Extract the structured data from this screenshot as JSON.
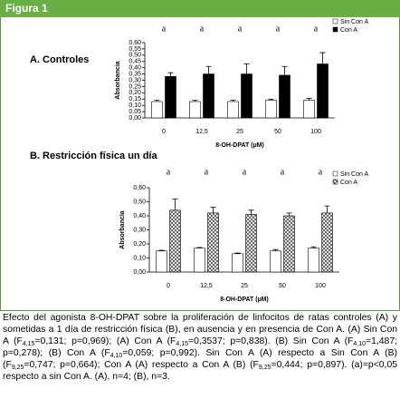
{
  "figure_label": "Figura 1",
  "chart_data": [
    {
      "type": "bar",
      "title": "A. Controles",
      "xlabel": "8-OH-DPAT (µM)",
      "ylabel": "Absorbancia",
      "categories": [
        "0",
        "12,5",
        "25",
        "50",
        "100"
      ],
      "annotations": [
        "a",
        "a",
        "a",
        "a",
        "a"
      ],
      "series": [
        {
          "name": "Sin Con A",
          "color": "#ffffff",
          "values": [
            0.13,
            0.13,
            0.13,
            0.14,
            0.14
          ],
          "errors": [
            0.01,
            0.01,
            0.01,
            0.01,
            0.015
          ]
        },
        {
          "name": "Con A",
          "color": "#000000",
          "values": [
            0.33,
            0.35,
            0.35,
            0.34,
            0.43
          ],
          "errors": [
            0.03,
            0.06,
            0.08,
            0.07,
            0.09
          ]
        }
      ],
      "ylim": [
        0,
        0.6
      ],
      "yticks": [
        {
          "value": 0,
          "label": "0,00"
        },
        {
          "value": 0.05,
          "label": "0,05"
        },
        {
          "value": 0.1,
          "label": "0,10"
        },
        {
          "value": 0.15,
          "label": "0,15"
        },
        {
          "value": 0.2,
          "label": "0,20"
        },
        {
          "value": 0.25,
          "label": "0,25"
        },
        {
          "value": 0.3,
          "label": "0,30"
        },
        {
          "value": 0.35,
          "label": "0,35"
        },
        {
          "value": 0.4,
          "label": "0,40"
        },
        {
          "value": 0.45,
          "label": "0,45"
        },
        {
          "value": 0.5,
          "label": "0,50"
        },
        {
          "value": 0.55,
          "label": "0,55"
        },
        {
          "value": 0.6,
          "label": "0,60"
        }
      ],
      "legend": "top-right"
    },
    {
      "type": "bar",
      "title": "B. Restricción física un día",
      "xlabel": "8-OH-DPAT (µM)",
      "ylabel": "Absorbancia",
      "categories": [
        "0",
        "12,5",
        "25",
        "50",
        "100"
      ],
      "annotations": [
        "a",
        "a",
        "a",
        "a",
        "a"
      ],
      "series": [
        {
          "name": "Sin Con A",
          "color": "#ffffff",
          "values": [
            0.15,
            0.17,
            0.13,
            0.15,
            0.17
          ],
          "errors": [
            0.005,
            0.005,
            0.005,
            0.01,
            0.01
          ]
        },
        {
          "name": "Con A",
          "color": "#000000",
          "hatch": true,
          "values": [
            0.44,
            0.42,
            0.41,
            0.4,
            0.42
          ],
          "errors": [
            0.08,
            0.04,
            0.03,
            0.02,
            0.05
          ]
        }
      ],
      "ylim": [
        0,
        0.6
      ],
      "yticks": [
        {
          "value": 0,
          "label": "0,00"
        },
        {
          "value": 0.1,
          "label": "0,10"
        },
        {
          "value": 0.2,
          "label": "0,20"
        },
        {
          "value": 0.3,
          "label": "0,30"
        },
        {
          "value": 0.4,
          "label": "0,40"
        },
        {
          "value": 0.5,
          "label": "0,50"
        },
        {
          "value": 0.6,
          "label": "0,60"
        }
      ],
      "legend": "top-right"
    }
  ],
  "caption": [
    "Efecto del agonista 8-OH-DPAT sobre la proliferación de linfocitos de ratas controles (A) y sometidas a 1 día de restricción física (B), en ausencia y en presencia de Con A. (A) Sin Con A (F",
    {
      "sub": "4,15"
    },
    "=0,131; p=0,969); (A) Con A (F",
    {
      "sub": "4,15"
    },
    "=0,3537; p=0,838). (B) Sin Con A (F",
    {
      "sub": "4,10"
    },
    "=1,487; p=0,278); (B) Con A (F",
    {
      "sub": "4,10"
    },
    "=0,059; p=0,992). Sin Con A (A) respecto a Sin Con A (B) (F",
    {
      "sub": "9,25"
    },
    "=0,747; p=0,664); Con A (A) respecto a Con A (B) (F",
    {
      "sub": "9,25"
    },
    "=0,444; p=0,897). (a)=p<0,05 respecto a sin Con A. (A), n=4; (B), n=3."
  ]
}
